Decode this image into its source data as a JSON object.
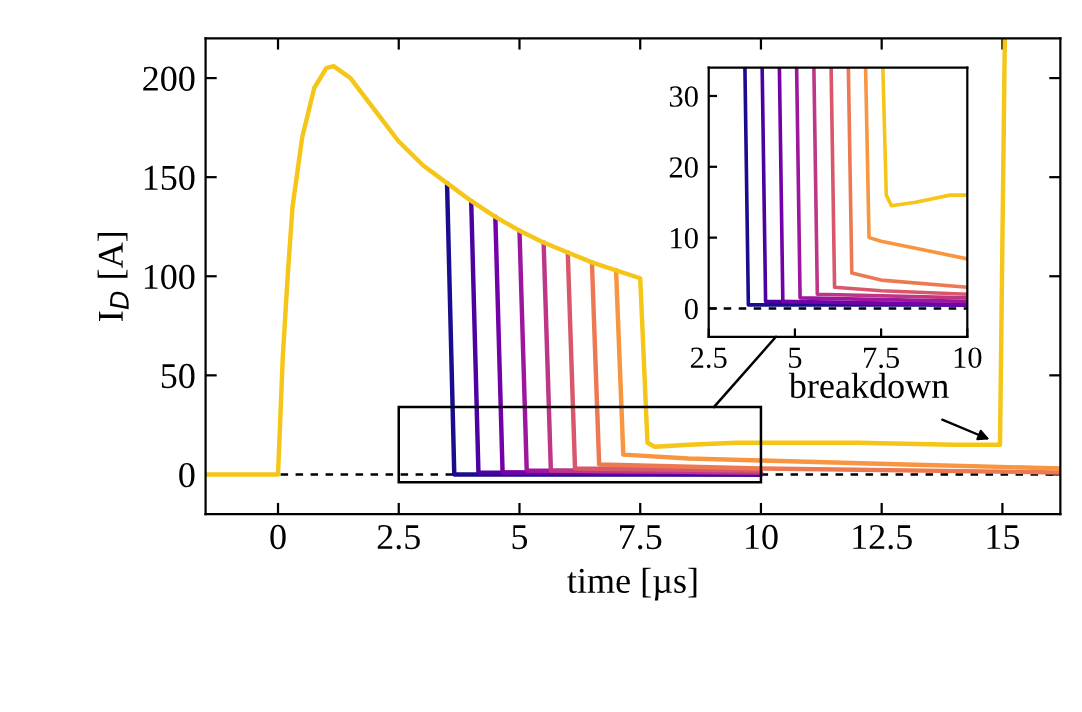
{
  "chart_data": [
    {
      "type": "line",
      "xlabel": "time [µs]",
      "ylabel": "I$_{D}$ [A]",
      "xlim": [
        -1.5,
        16.2
      ],
      "ylim": [
        -20,
        220
      ],
      "xticks": [
        0,
        2.5,
        5,
        7.5,
        10,
        12.5,
        15
      ],
      "yticks": [
        0,
        50,
        100,
        150,
        200
      ],
      "ref_lines": [
        {
          "axis": "y",
          "value": 0,
          "color": "#000000",
          "line_style": "dashed"
        }
      ],
      "annotations": [
        {
          "text": "breakdown",
          "x": 15,
          "y": 15
        }
      ],
      "series": [
        {
          "color": "#1a0c8f",
          "x": [
            3.5,
            3.65,
            10
          ],
          "values": [
            147,
            0,
            0
          ]
        },
        {
          "color": "#4c02a1",
          "x": [
            4.0,
            4.15,
            10
          ],
          "values": [
            138,
            1,
            0
          ]
        },
        {
          "color": "#7301a8",
          "x": [
            4.5,
            4.65,
            10
          ],
          "values": [
            130,
            1,
            1
          ]
        },
        {
          "color": "#9c179e",
          "x": [
            5.0,
            5.15,
            10
          ],
          "values": [
            123,
            2,
            1
          ]
        },
        {
          "color": "#bd3786",
          "x": [
            5.5,
            5.65,
            10
          ],
          "values": [
            117,
            2,
            1
          ]
        },
        {
          "color": "#d8576b",
          "x": [
            6.0,
            6.15,
            10
          ],
          "values": [
            112,
            3,
            2
          ]
        },
        {
          "color": "#ed7953",
          "x": [
            6.5,
            6.65,
            10,
            16.2
          ],
          "values": [
            107,
            5,
            3,
            1
          ]
        },
        {
          "color": "#f89540",
          "x": [
            7.0,
            7.15,
            8.5,
            10,
            13,
            16.2
          ],
          "values": [
            103,
            10,
            8,
            7,
            5,
            3
          ]
        },
        {
          "color": "#f5c518",
          "x": [
            -1.5,
            0,
            0.05,
            0.1,
            0.2,
            0.3,
            0.5,
            0.75,
            1.0,
            1.15,
            1.5,
            2.0,
            2.5,
            3.0,
            3.5,
            4.0,
            4.5,
            5.0,
            5.5,
            6.0,
            6.5,
            7.0,
            7.5,
            7.65,
            7.8,
            8.5,
            9.5,
            10,
            12,
            14,
            14.95,
            15.05
          ],
          "values": [
            0,
            0,
            30,
            60,
            100,
            135,
            170,
            195,
            205,
            206,
            200,
            184,
            168,
            156,
            147,
            138,
            130,
            123,
            117,
            112,
            107,
            103,
            99,
            16,
            14,
            15,
            16,
            16,
            16,
            15,
            15,
            220
          ]
        }
      ]
    },
    {
      "type": "line",
      "xlim": [
        2.5,
        10
      ],
      "ylim": [
        -4,
        34
      ],
      "xticks": [
        2.5,
        5,
        7.5,
        10
      ],
      "yticks": [
        0,
        10,
        20,
        30
      ],
      "ref_lines": [
        {
          "axis": "y",
          "value": 0,
          "color": "#000000",
          "line_style": "dashed"
        }
      ],
      "series": [
        {
          "color": "#1a0c8f",
          "x": [
            3.55,
            3.65,
            10
          ],
          "values": [
            34,
            0.5,
            0.5
          ]
        },
        {
          "color": "#4c02a1",
          "x": [
            4.05,
            4.15,
            10
          ],
          "values": [
            34,
            1,
            0.5
          ]
        },
        {
          "color": "#7301a8",
          "x": [
            4.55,
            4.65,
            10
          ],
          "values": [
            34,
            1,
            0.5
          ]
        },
        {
          "color": "#9c179e",
          "x": [
            5.05,
            5.15,
            10
          ],
          "values": [
            34,
            1.5,
            1
          ]
        },
        {
          "color": "#bd3786",
          "x": [
            5.55,
            5.65,
            10
          ],
          "values": [
            34,
            2,
            1.5
          ]
        },
        {
          "color": "#d8576b",
          "x": [
            6.05,
            6.15,
            7.5,
            10
          ],
          "values": [
            34,
            3,
            2.5,
            2
          ]
        },
        {
          "color": "#ed7953",
          "x": [
            6.55,
            6.65,
            7.5,
            10
          ],
          "values": [
            34,
            5,
            4,
            3
          ]
        },
        {
          "color": "#f89540",
          "x": [
            7.05,
            7.15,
            7.5,
            8.5,
            10
          ],
          "values": [
            34,
            10,
            9.5,
            8.5,
            7
          ]
        },
        {
          "color": "#f5c518",
          "x": [
            7.55,
            7.65,
            7.8,
            8.5,
            9.5,
            10
          ],
          "values": [
            34,
            16,
            14.5,
            15,
            16,
            16
          ]
        }
      ]
    }
  ]
}
